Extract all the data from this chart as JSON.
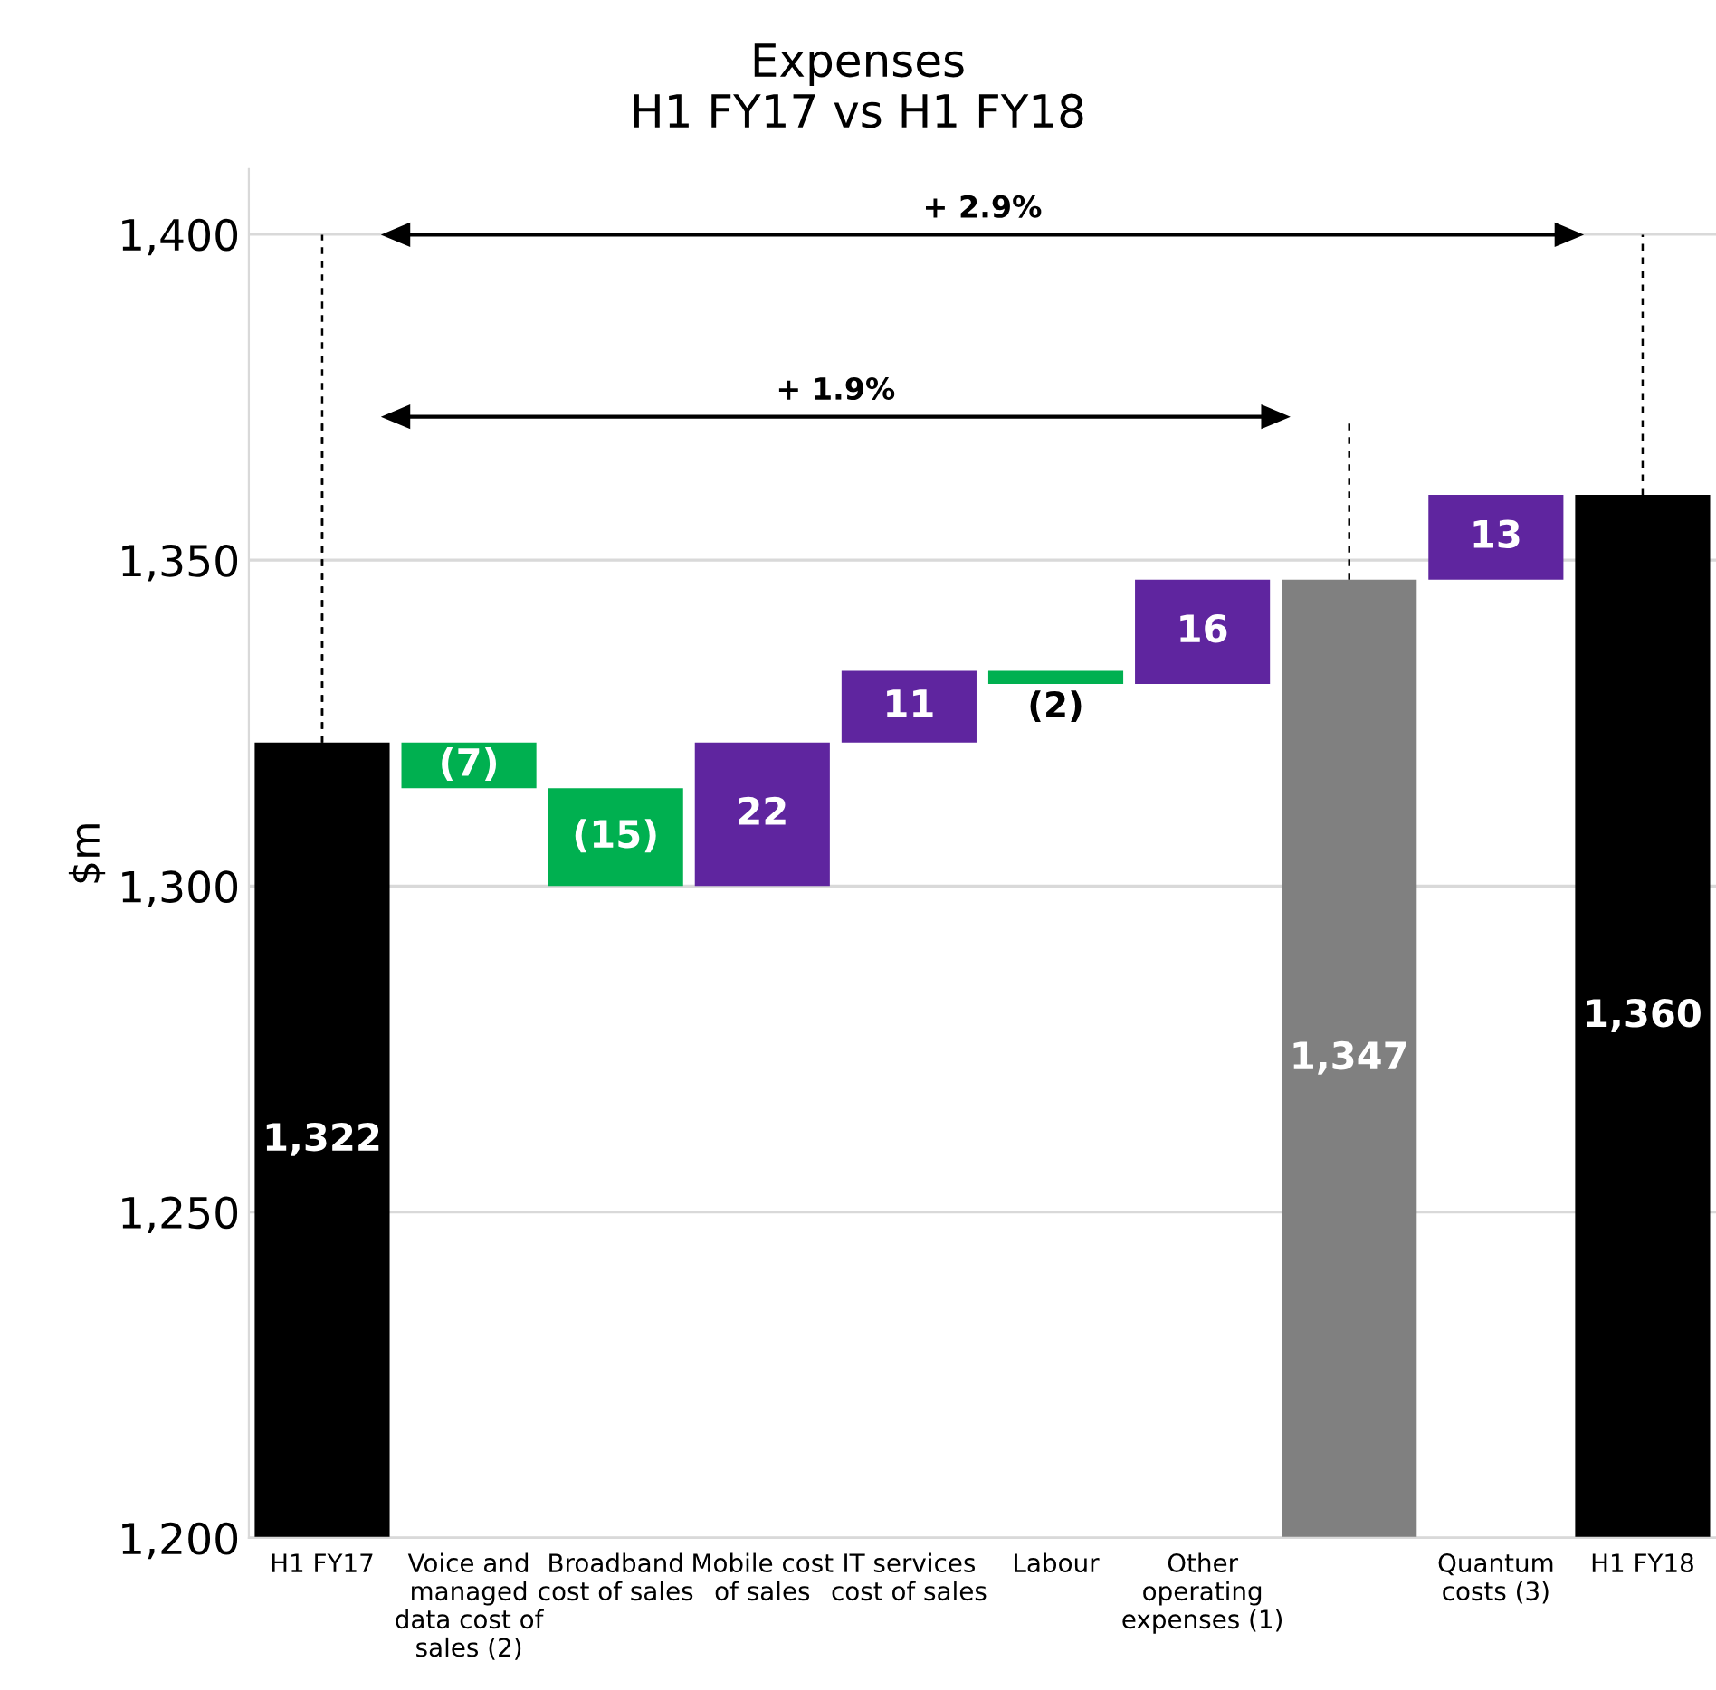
{
  "chart_data": {
    "type": "bar",
    "title": "Expenses",
    "subtitle": "H1 FY17 vs H1 FY18",
    "ylabel": "$m",
    "categories": [
      "H1 FY17",
      "Voice and\nmanaged\ndata cost of\nsales (2)",
      "Broadband\ncost of sales",
      "Mobile cost\nof sales",
      "IT services\ncost of sales",
      "Labour",
      "Other\noperating\nexpenses (1)",
      null,
      "Quantum\ncosts (3)",
      "H1 FY18"
    ],
    "base": [
      1200,
      1322,
      1315,
      1300,
      1322,
      1333,
      1331,
      1200,
      1347,
      1200
    ],
    "values": [
      122,
      -7,
      -15,
      22,
      11,
      -2,
      16,
      147,
      13,
      160
    ],
    "colors": [
      "#000000",
      "#00b050",
      "#00b050",
      "#5f259f",
      "#5f259f",
      "#00b050",
      "#5f259f",
      "#808080",
      "#5f259f",
      "#000000"
    ],
    "value_labels": [
      "1,322",
      "(7)",
      "(15)",
      "22",
      "11",
      "(2)",
      "16",
      "1,347",
      "13",
      "1,360"
    ],
    "ylim": [
      1200,
      1410
    ],
    "yticks": [
      {
        "value": 1200,
        "label": "1,200"
      },
      {
        "value": 1250,
        "label": "1,250"
      },
      {
        "value": 1300,
        "label": "1,300"
      },
      {
        "value": 1350,
        "label": "1,350"
      },
      {
        "value": 1400,
        "label": "1,400"
      }
    ],
    "grid": "y",
    "annotations": [
      "+ 2.9%",
      "+ 1.9%"
    ]
  }
}
